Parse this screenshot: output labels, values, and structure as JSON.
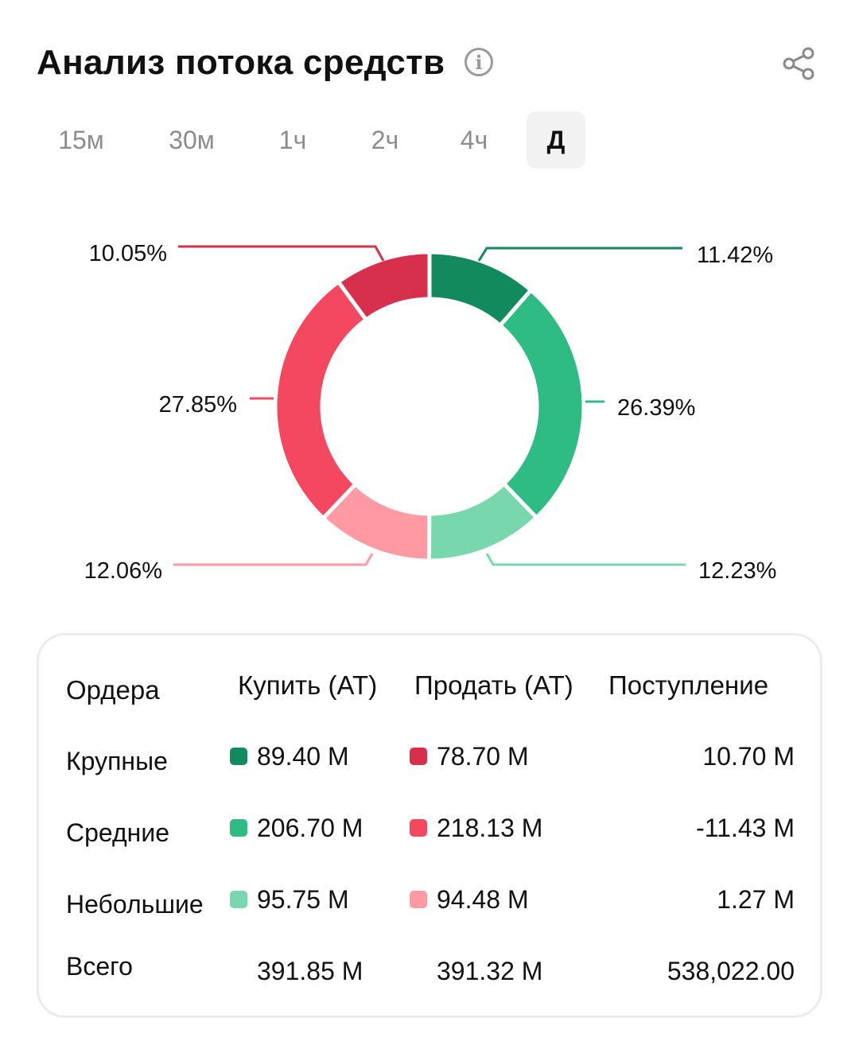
{
  "header": {
    "title": "Анализ потока средств",
    "info_icon": "info-icon",
    "share_icon": "share-icon"
  },
  "tabs": [
    {
      "label": "15м",
      "active": false
    },
    {
      "label": "30м",
      "active": false
    },
    {
      "label": "1ч",
      "active": false
    },
    {
      "label": "2ч",
      "active": false
    },
    {
      "label": "4ч",
      "active": false
    },
    {
      "label": "Д",
      "active": true
    }
  ],
  "colors": {
    "buy_large": "#128a5e",
    "buy_medium": "#2fbb84",
    "buy_small": "#79d7ae",
    "sell_large": "#d7304d",
    "sell_medium": "#f44860",
    "sell_small": "#ff9aa2"
  },
  "chart_data": {
    "type": "pie",
    "slices": [
      {
        "label": "11.42%",
        "value": 11.42,
        "color": "#128a5e"
      },
      {
        "label": "26.39%",
        "value": 26.39,
        "color": "#2fbb84"
      },
      {
        "label": "12.23%",
        "value": 12.23,
        "color": "#79d7ae"
      },
      {
        "label": "12.06%",
        "value": 12.06,
        "color": "#ff9aa2"
      },
      {
        "label": "27.85%",
        "value": 27.85,
        "color": "#f44860"
      },
      {
        "label": "10.05%",
        "value": 10.05,
        "color": "#d7304d"
      }
    ]
  },
  "table": {
    "headers": {
      "orders": "Ордера",
      "buy": "Купить (AT)",
      "sell": "Продать (AT)",
      "inflow": "Поступление"
    },
    "rows": [
      {
        "label": "Крупные",
        "buy": "89.40 M",
        "sell": "78.70 M",
        "inflow": "10.70 M"
      },
      {
        "label": "Средние",
        "buy": "206.70 M",
        "sell": "218.13 M",
        "inflow": "-11.43 M"
      },
      {
        "label": "Небольшие",
        "buy": "95.75 M",
        "sell": "94.48 M",
        "inflow": "1.27 M"
      }
    ],
    "total": {
      "label": "Всего",
      "buy": "391.85 M",
      "sell": "391.32 M",
      "inflow": "538,022.00"
    }
  }
}
